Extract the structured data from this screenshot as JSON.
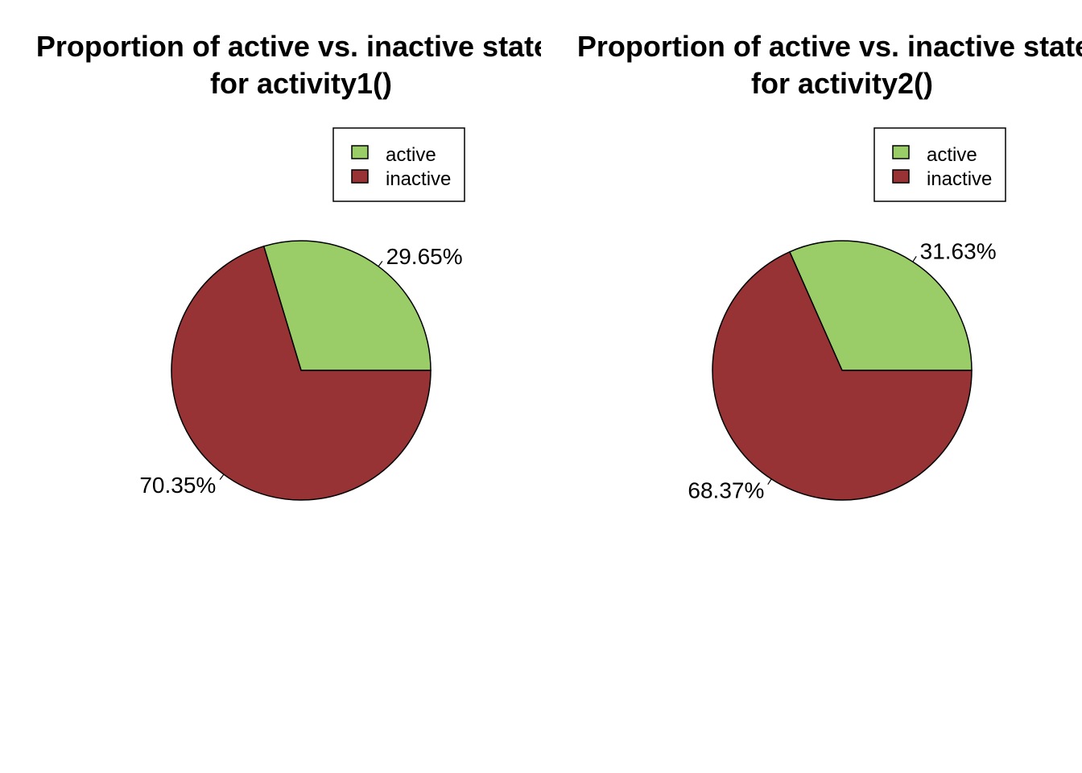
{
  "chart_data": [
    {
      "type": "pie",
      "title_line1": "Proportion of active vs. inactive states",
      "title_line2": "for activity1()",
      "categories": [
        "active",
        "inactive"
      ],
      "values": [
        29.65,
        70.35
      ],
      "labels": [
        "29.65%",
        "70.35%"
      ],
      "colors": [
        "#9ACD67",
        "#983335"
      ],
      "legend_position": "top-right"
    },
    {
      "type": "pie",
      "title_line1": "Proportion of active vs. inactive states",
      "title_line2": "for activity2()",
      "categories": [
        "active",
        "inactive"
      ],
      "values": [
        31.63,
        68.37
      ],
      "labels": [
        "31.63%",
        "68.37%"
      ],
      "colors": [
        "#9ACD67",
        "#983335"
      ],
      "legend_position": "top-right"
    }
  ]
}
